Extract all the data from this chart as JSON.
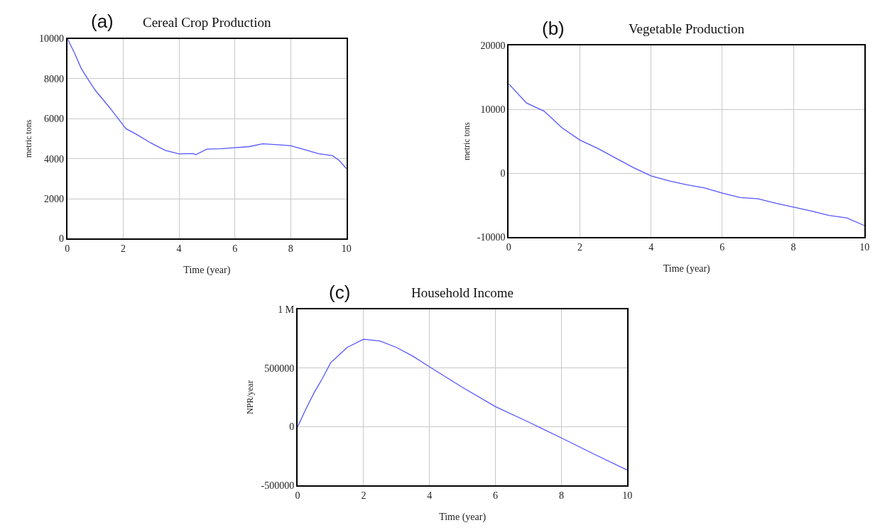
{
  "chart_data": [
    {
      "type": "line",
      "title": "Cereal Crop Production",
      "xlabel": "Time (year)",
      "ylabel": "metric tons",
      "annotations": [
        "(a)"
      ],
      "grid": true,
      "marker": "none",
      "line_style": "solid",
      "x": [
        0,
        0.25,
        0.5,
        0.75,
        1,
        1.5,
        2,
        2.1,
        2.5,
        3,
        3.5,
        4,
        4.5,
        4.6,
        5,
        5.5,
        6,
        6.5,
        7,
        7.5,
        8,
        8.5,
        9,
        9.5,
        9.75,
        10
      ],
      "series": [
        {
          "color": "#5555ff",
          "values": [
            10000,
            9300,
            8500,
            7950,
            7420,
            6580,
            5680,
            5500,
            5200,
            4780,
            4420,
            4240,
            4260,
            4200,
            4480,
            4500,
            4550,
            4600,
            4750,
            4700,
            4650,
            4450,
            4250,
            4150,
            3900,
            3500
          ]
        }
      ],
      "xlim": [
        0,
        10
      ],
      "xticks": [
        0,
        2,
        4,
        6,
        8,
        10
      ],
      "ylim": [
        0,
        10000
      ],
      "yticks": [
        0,
        2000,
        4000,
        6000,
        8000,
        10000
      ]
    },
    {
      "type": "line",
      "title": "Vegetable Production",
      "xlabel": "Time (year)",
      "ylabel": "metric tons",
      "annotations": [
        "(b)"
      ],
      "grid": true,
      "marker": "none",
      "line_style": "solid",
      "x": [
        0,
        0.5,
        1,
        1.5,
        2,
        2.5,
        3,
        3.5,
        4,
        4.5,
        5,
        5.5,
        6,
        6.5,
        7,
        7.5,
        8,
        8.5,
        9,
        9.5,
        10
      ],
      "series": [
        {
          "color": "#5555ff",
          "values": [
            14000,
            11000,
            9700,
            7100,
            5200,
            3900,
            2400,
            900,
            -400,
            -1200,
            -1800,
            -2300,
            -3100,
            -3800,
            -4000,
            -4700,
            -5300,
            -5900,
            -6600,
            -7000,
            -8200
          ]
        }
      ],
      "xlim": [
        0,
        10
      ],
      "xticks": [
        0,
        2,
        4,
        6,
        8,
        10
      ],
      "ylim": [
        -10000,
        20000
      ],
      "yticks": [
        -10000,
        0,
        10000,
        20000
      ]
    },
    {
      "type": "line",
      "title": "Household Income",
      "xlabel": "Time (year)",
      "ylabel": "NPR/year",
      "annotations": [
        "(c)"
      ],
      "grid": true,
      "marker": "none",
      "line_style": "solid",
      "x": [
        0,
        0.25,
        0.5,
        0.75,
        1,
        1.5,
        2,
        2.5,
        3,
        3.5,
        4,
        5,
        6,
        7,
        8,
        9,
        10
      ],
      "series": [
        {
          "color": "#5555ff",
          "values": [
            0,
            150000,
            290000,
            410000,
            544000,
            675000,
            745000,
            730000,
            675000,
            600000,
            510000,
            335000,
            171000,
            40000,
            -96000,
            -235000,
            -370000
          ]
        }
      ],
      "xlim": [
        0,
        10
      ],
      "xticks": [
        0,
        2,
        4,
        6,
        8,
        10
      ],
      "ylim": [
        -500000,
        1000000
      ],
      "yticks": [
        -500000,
        0,
        500000,
        {
          "value": 1000000,
          "label": "1 M"
        }
      ]
    }
  ]
}
